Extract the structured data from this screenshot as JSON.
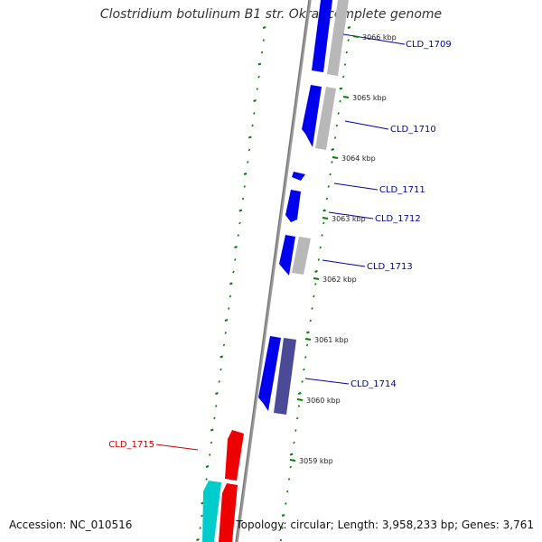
{
  "title": "Clostridium botulinum B1 str. Okra, complete genome",
  "accession": "Accession: NC_010516",
  "topology": "Topology: circular; Length: 3,958,233 bp; Genes: 3,761",
  "colors": {
    "forward_gene": "#0000ee",
    "reverse_gene": "#ee0000",
    "rna_gene": "#00cccc",
    "gray_feature": "#b8b8b8",
    "slate_feature": "#4a4a96",
    "tick": "#008000",
    "forward_label": "#0000aa",
    "reverse_label": "#cc0000",
    "backbone": "#808080"
  },
  "kbp_ticks": [
    "3066 kbp",
    "3065 kbp",
    "3064 kbp",
    "3063 kbp",
    "3062 kbp",
    "3061 kbp",
    "3060 kbp",
    "3059 kbp"
  ],
  "gene_labels": [
    {
      "text": "CLD_1709",
      "strand": "forward"
    },
    {
      "text": "CLD_1710",
      "strand": "forward"
    },
    {
      "text": "CLD_1711",
      "strand": "forward"
    },
    {
      "text": "CLD_1712",
      "strand": "forward"
    },
    {
      "text": "CLD_1713",
      "strand": "forward"
    },
    {
      "text": "CLD_1714",
      "strand": "forward"
    },
    {
      "text": "CLD_1715",
      "strand": "reverse"
    }
  ]
}
